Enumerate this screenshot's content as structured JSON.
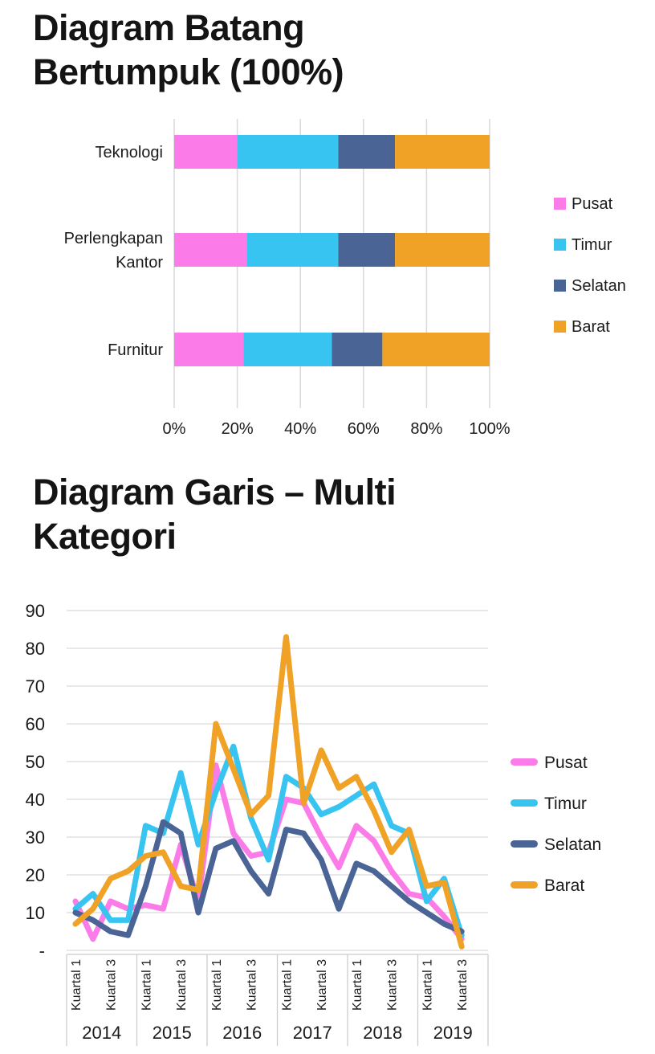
{
  "colors": {
    "pusat": "#fb7ce8",
    "timur": "#38c4f1",
    "selatan": "#4a6496",
    "barat": "#f0a227",
    "grid": "#d9d9d9",
    "axis_box": "#cccccc",
    "text": "#1b1b1b"
  },
  "chart_data": [
    {
      "type": "bar",
      "orientation": "horizontal",
      "stacked_100_percent": true,
      "title": "Diagram Batang Bertumpuk (100%)",
      "categories": [
        "Teknologi",
        "Perlengkapan Kantor",
        "Furnitur"
      ],
      "series": [
        {
          "name": "Pusat",
          "color": "#fb7ce8",
          "values": [
            20,
            23,
            22
          ]
        },
        {
          "name": "Timur",
          "color": "#38c4f1",
          "values": [
            32,
            29,
            28
          ]
        },
        {
          "name": "Selatan",
          "color": "#4a6496",
          "values": [
            18,
            18,
            16
          ]
        },
        {
          "name": "Barat",
          "color": "#f0a227",
          "values": [
            30,
            30,
            34
          ]
        }
      ],
      "x_ticks": [
        "0%",
        "20%",
        "40%",
        "60%",
        "80%",
        "100%"
      ],
      "xlim": [
        0,
        100
      ],
      "grid": "vertical",
      "legend_position": "right"
    },
    {
      "type": "line",
      "title": "Diagram Garis – Multi Kategori",
      "years": [
        "2014",
        "2015",
        "2016",
        "2017",
        "2018",
        "2019"
      ],
      "quarters_per_year": [
        4,
        4,
        4,
        4,
        4,
        3
      ],
      "slots_per_year": 4,
      "x_tick_labels": [
        "Kuartal 1",
        "Kuartal 3"
      ],
      "x_tick_slots": [
        0,
        2
      ],
      "y_ticks": [
        "90",
        "80",
        "70",
        "60",
        "50",
        "40",
        "30",
        "20",
        "10",
        "-"
      ],
      "y_tick_values": [
        90,
        80,
        70,
        60,
        50,
        40,
        30,
        20,
        10,
        0
      ],
      "ylim": [
        0,
        90
      ],
      "grid": "horizontal",
      "legend_position": "right",
      "series": [
        {
          "name": "Pusat",
          "color": "#fb7ce8",
          "values": [
            13,
            3,
            13,
            11,
            12,
            11,
            28,
            13,
            49,
            31,
            25,
            26,
            40,
            39,
            30,
            22,
            33,
            29,
            21,
            15,
            14,
            9,
            3
          ]
        },
        {
          "name": "Timur",
          "color": "#38c4f1",
          "values": [
            11,
            15,
            8,
            8,
            33,
            31,
            47,
            28,
            42,
            54,
            35,
            24,
            46,
            43,
            36,
            38,
            41,
            44,
            33,
            31,
            13,
            19,
            4
          ]
        },
        {
          "name": "Selatan",
          "color": "#4a6496",
          "values": [
            10,
            8,
            5,
            4,
            17,
            34,
            31,
            10,
            27,
            29,
            21,
            15,
            32,
            31,
            24,
            11,
            23,
            21,
            17,
            13,
            10,
            7,
            5
          ]
        },
        {
          "name": "Barat",
          "color": "#f0a227",
          "values": [
            7,
            11,
            19,
            21,
            25,
            26,
            17,
            16,
            60,
            48,
            36,
            41,
            83,
            39,
            53,
            43,
            46,
            37,
            26,
            32,
            17,
            18,
            1
          ]
        }
      ]
    }
  ]
}
